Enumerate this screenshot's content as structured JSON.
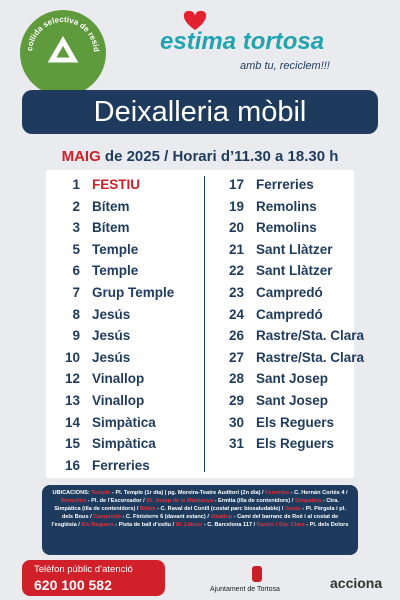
{
  "badge": {
    "text": "Recollida selectiva de residus"
  },
  "logo": {
    "name": "estima tortosa",
    "slogan": "amb tu, reciclem!!!"
  },
  "header": {
    "title": "Deixalleria mòbil",
    "month": "MAIG",
    "subtitle": "de 2025 / Horari d’11.30 a 18.30 h"
  },
  "schedule": {
    "left": [
      {
        "day": 1,
        "place": "FESTIU",
        "highlight": true
      },
      {
        "day": 2,
        "place": "Bítem"
      },
      {
        "day": 3,
        "place": "Bítem"
      },
      {
        "day": 5,
        "place": "Temple"
      },
      {
        "day": 6,
        "place": "Temple"
      },
      {
        "day": 7,
        "place": "Grup Temple"
      },
      {
        "day": 8,
        "place": "Jesús"
      },
      {
        "day": 9,
        "place": "Jesús"
      },
      {
        "day": 10,
        "place": "Jesús"
      },
      {
        "day": 12,
        "place": "Vinallop"
      },
      {
        "day": 13,
        "place": "Vinallop"
      },
      {
        "day": 14,
        "place": "Simpàtica"
      },
      {
        "day": 15,
        "place": "Simpàtica"
      },
      {
        "day": 16,
        "place": "Ferreries"
      }
    ],
    "right": [
      {
        "day": 17,
        "place": "Ferreries"
      },
      {
        "day": 19,
        "place": "Remolins"
      },
      {
        "day": 20,
        "place": "Remolins"
      },
      {
        "day": 21,
        "place": "Sant Llàtzer"
      },
      {
        "day": 22,
        "place": "Sant Llàtzer"
      },
      {
        "day": 23,
        "place": "Campredó"
      },
      {
        "day": 24,
        "place": "Campredó"
      },
      {
        "day": 26,
        "place": "Rastre/Sta. Clara"
      },
      {
        "day": 27,
        "place": "Rastre/Sta. Clara"
      },
      {
        "day": 28,
        "place": "Sant  Josep"
      },
      {
        "day": 29,
        "place": "Sant Josep"
      },
      {
        "day": 30,
        "place": "Els Reguers"
      },
      {
        "day": 31,
        "place": "Els Reguers"
      }
    ]
  },
  "locations": {
    "heading": "UBICACIONS:",
    "items": [
      {
        "place": "Temple",
        "detail": " - Pl. Temple (1r dia) | pg. Moreira-Teatre Auditori (2n dia) /"
      },
      {
        "place": "Ferreries",
        "detail": " - C. Hernán Cortés 4 /"
      },
      {
        "place": "Remolins",
        "detail": " - Pl. de l’Escorxador /"
      },
      {
        "place": "St. Josep de la Muntanya",
        "detail": " - Ermita (illa de contenidors) /"
      },
      {
        "place": "Simpàtica",
        "detail": " - Ctra. Simpàtica (illa de contenidors) /"
      },
      {
        "place": "Bítem",
        "detail": " - C. Raval del Conill (costat parc biosaludable) /"
      },
      {
        "place": "Jesús",
        "detail": " - Pl. Pèrgola i pl. dels Bous /"
      },
      {
        "place": "Campredó",
        "detail": " - C. Finisterre 6 (davant estanc) /"
      },
      {
        "place": "Vinallop",
        "detail": " - Camí del barranc de Roé i al costat de l’església /"
      },
      {
        "place": "Els Reguers",
        "detail": " - Pista de ball d’estiu /"
      },
      {
        "place": "St. Llàtzer",
        "detail": " - C. Barcelona 117 /"
      },
      {
        "place": "Rastre i Sta. Clara",
        "detail": " - Pl. dels Dolors"
      }
    ]
  },
  "footer": {
    "phone_label": "Telèfon públic d’atenció",
    "phone": "620 100 582",
    "council": "Ajuntament de Tortosa",
    "partner": "acciona"
  }
}
